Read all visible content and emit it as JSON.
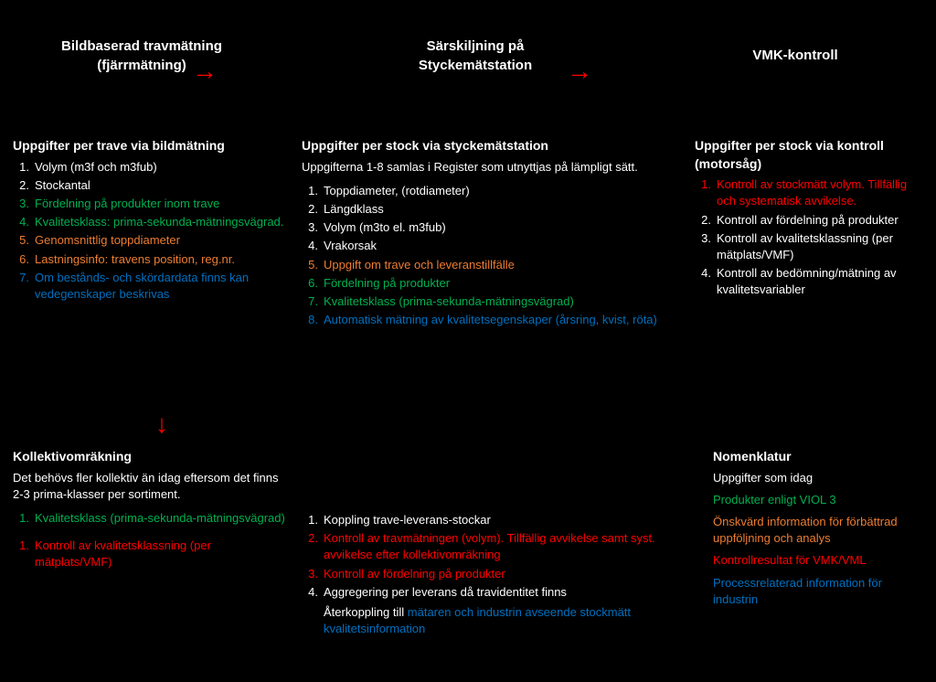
{
  "colors": {
    "green": "#00b050",
    "orange": "#ed7d31",
    "blue": "#0070c0",
    "red": "#ff0000",
    "white": "#ffffff",
    "black": "#000000"
  },
  "headers": {
    "col1_title": "Bildbaserad travmätning",
    "col1_sub": "(fjärrmätning)",
    "col2_title": "Särskiljning på",
    "col2_sub": "Styckemätstation",
    "col3_title": "VMK-kontroll"
  },
  "arrows": {
    "r1_label": "leder till",
    "r2_label": "leder till",
    "d1_label": "leder till"
  },
  "boxA": {
    "heading": "Uppgifter per trave via bildmätning",
    "items": [
      {
        "num": "1.",
        "text": "Volym (m3f och m3fub)",
        "c": "white"
      },
      {
        "num": "2.",
        "text": "Stockantal",
        "c": "white"
      },
      {
        "num": "3.",
        "text": "Fördelning på produkter inom trave",
        "c": "green"
      },
      {
        "num": "4.",
        "text": "Kvalitetsklass: prima-sekunda-mätningsvägrad.",
        "c": "green"
      },
      {
        "num": "5.",
        "text": "Genomsnittlig toppdiameter",
        "c": "orange"
      },
      {
        "num": "6.",
        "text": "Lastningsinfo: travens position, reg.nr.",
        "c": "orange"
      },
      {
        "num": "7.",
        "text": "Om bestånds- och skördardata finns kan vedegenskaper beskrivas",
        "c": "blue"
      }
    ]
  },
  "boxB": {
    "heading": "Kollektivomräkning",
    "desc": "Det behövs fler kollektiv än idag eftersom det finns 2-3 prima-klasser per sortiment.",
    "items": [
      {
        "num": "1.",
        "text": "Kvalitetsklass (prima-sekunda-mätningsvägrad)",
        "c": "green"
      }
    ],
    "items2": [
      {
        "num": "1.",
        "text": "Kontroll av kvalitetsklassning (per mätplats/VMF)",
        "c": "red"
      }
    ]
  },
  "boxC": {
    "heading": "Uppgifter per stock via styckemätstation",
    "desc": "Uppgifterna 1-8 samlas i Register som utnyttjas på lämpligt sätt.",
    "items": [
      {
        "num": "1.",
        "text": "Toppdiameter, (rotdiameter)",
        "c": "white"
      },
      {
        "num": "2.",
        "text": "Längdklass",
        "c": "white"
      },
      {
        "num": "3.",
        "text": "Volym (m3to el. m3fub)",
        "c": "white"
      },
      {
        "num": "4.",
        "text": "Vrakorsak",
        "c": "white"
      },
      {
        "num": "5.",
        "text": "Uppgift om trave och leveranstillfälle",
        "c": "orange"
      },
      {
        "num": "6.",
        "text": "Fördelning på produkter",
        "c": "green"
      },
      {
        "num": "7.",
        "text": "Kvalitetsklass (prima-sekunda-mätningsvägrad)",
        "c": "green"
      },
      {
        "num": "8.",
        "text": "Automatisk mätning av kvalitetsegenskaper (årsring, kvist, röta)",
        "c": "blue"
      }
    ]
  },
  "boxD": {
    "items": [
      {
        "num": "1.",
        "text": "Koppling trave-leverans-stockar",
        "c": "white"
      },
      {
        "num": "2.",
        "text": "Kontroll av travmätningen (volym). Tillfällig avvikelse samt syst. avvikelse efter kollektivomräkning",
        "c": "red"
      },
      {
        "num": "3.",
        "text": "Kontroll av fördelning på produkter",
        "c": "red"
      },
      {
        "num": "4.",
        "text": "Aggregering per leverans då travidentitet finns",
        "c": "white"
      }
    ],
    "tail": {
      "pre": "Återkoppling till ",
      "mid": "mätaren ",
      "post": "och industrin avseende stockmätt kvalitetsinformation",
      "pre_c": "white",
      "mid_c": "blue",
      "post_c": "blue"
    }
  },
  "boxE": {
    "heading": "Uppgifter per stock via kontroll (motorsåg)",
    "items": [
      {
        "num": "1.",
        "text": "Kontroll av stockmätt volym. Tillfällig och systematisk avvikelse.",
        "c": "red"
      },
      {
        "num": "2.",
        "text": "Kontroll av fördelning på produkter",
        "c": "white"
      },
      {
        "num": "3.",
        "text": "Kontroll av kvalitetsklassning (per mätplats/VMF)",
        "c": "white"
      },
      {
        "num": "4.",
        "text": "Kontroll av bedömning/mätning av kvalitetsvariabler",
        "c": "white"
      }
    ]
  },
  "legend": {
    "heading": "Nomenklatur",
    "rows": [
      {
        "text": "Uppgifter som idag",
        "c": "white"
      },
      {
        "text": "Produkter enligt VIOL 3",
        "c": "green"
      },
      {
        "text": "Önskvärd information för förbättrad uppföljning och analys",
        "c": "orange"
      },
      {
        "text": "Kontrollresultat för VMK/VML",
        "c": "red"
      },
      {
        "text": "Processrelaterad information för industrin",
        "c": "blue"
      }
    ]
  }
}
